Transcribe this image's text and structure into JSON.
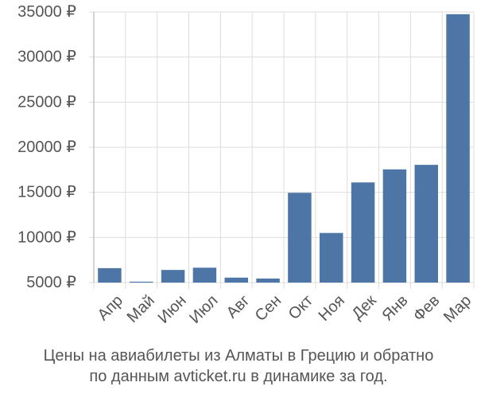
{
  "caption": {
    "line1": "Цены на авиабилеты из Алматы в Грецию и обратно",
    "line2": "по данным avticket.ru в динамике за год."
  },
  "colors": {
    "bar": "#4d76a6",
    "grid": "#dddddd",
    "axis": "#aaaaaa",
    "text": "#555555"
  },
  "chart_data": {
    "type": "bar",
    "categories": [
      "Апр",
      "Май",
      "Июн",
      "Июл",
      "Авг",
      "Сен",
      "Окт",
      "Ноя",
      "Дек",
      "Янв",
      "Фев",
      "Мар"
    ],
    "values": [
      6600,
      5100,
      6400,
      6650,
      5550,
      5450,
      14950,
      10500,
      16100,
      17550,
      18050,
      34750
    ],
    "ylim": [
      5000,
      35000
    ],
    "yticks": [
      5000,
      10000,
      15000,
      20000,
      25000,
      30000,
      35000
    ],
    "ytick_labels": [
      "5000 ₽",
      "10000 ₽",
      "15000 ₽",
      "20000 ₽",
      "25000 ₽",
      "30000 ₽",
      "35000 ₽"
    ],
    "grid": true
  }
}
